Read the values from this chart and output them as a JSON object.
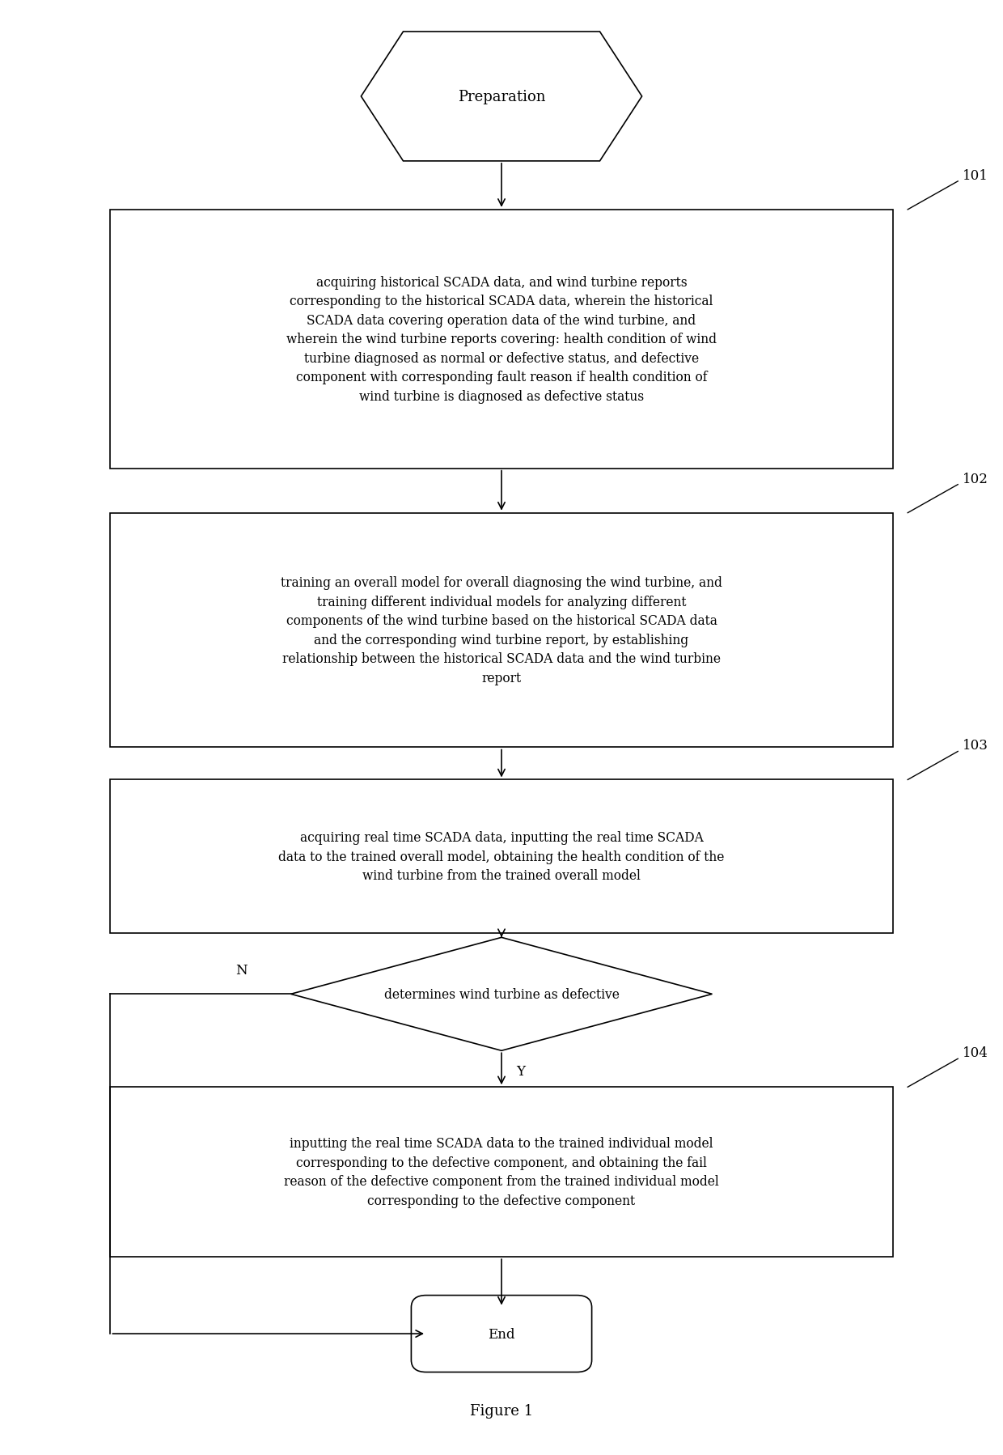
{
  "bg_color": "#ffffff",
  "fig_width": 12.4,
  "fig_height": 17.99,
  "title": "Figure 1",
  "preparation_text": "Preparation",
  "box101_text": "acquiring historical SCADA data, and wind turbine reports\ncorresponding to the historical SCADA data, wherein the historical\nSCADA data covering operation data of the wind turbine, and\nwherein the wind turbine reports covering: health condition of wind\nturbine diagnosed as normal or defective status, and defective\ncomponent with corresponding fault reason if health condition of\nwind turbine is diagnosed as defective status",
  "box102_text": "training an overall model for overall diagnosing the wind turbine, and\ntraining different individual models for analyzing different\ncomponents of the wind turbine based on the historical SCADA data\nand the corresponding wind turbine report, by establishing\nrelationship between the historical SCADA data and the wind turbine\nreport",
  "box103_text": "acquiring real time SCADA data, inputting the real time SCADA\ndata to the trained overall model, obtaining the health condition of the\nwind turbine from the trained overall model",
  "diamond_text": "determines wind turbine as defective",
  "box104_text": "inputting the real time SCADA data to the trained individual model\ncorresponding to the defective component, and obtaining the fail\nreason of the defective component from the trained individual model\ncorresponding to the defective component",
  "end_text": "End",
  "label_101": "101",
  "label_102": "102",
  "label_103": "103",
  "label_104": "104",
  "label_N": "N",
  "label_Y": "Y",
  "line_color": "#000000",
  "text_color": "#000000",
  "font_size_main": 11.5,
  "font_size_label": 12,
  "font_size_title": 13
}
